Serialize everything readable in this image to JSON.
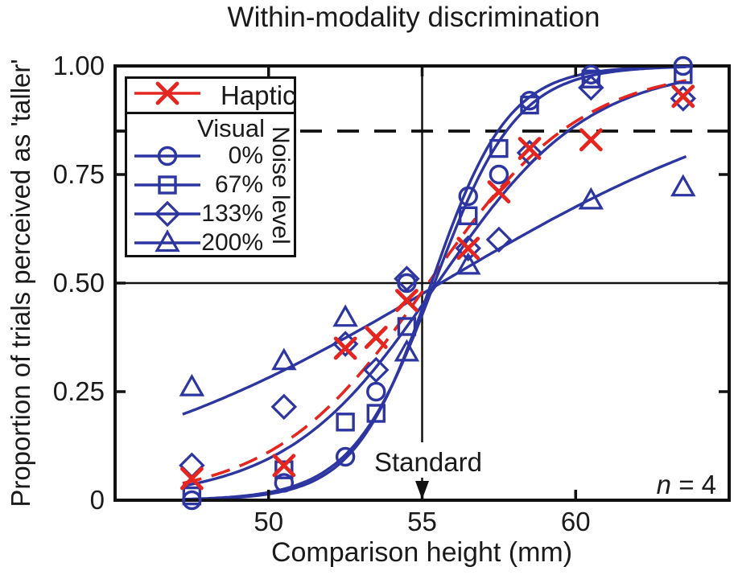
{
  "figure": {
    "title": "Within-modality discrimination",
    "xlabel": "Comparison height (mm)",
    "ylabel": "Proportion of trials perceived as 'taller'",
    "standard_label": "Standard",
    "n_symbol": "n",
    "n_rest": " = 4"
  },
  "legend": {
    "haptic_label": "Haptic",
    "visual_label": "Visual",
    "noise_label": "Noise level",
    "items": [
      {
        "label": "0%",
        "marker": "circle"
      },
      {
        "label": "67%",
        "marker": "square"
      },
      {
        "label": "133%",
        "marker": "diamond"
      },
      {
        "label": "200%",
        "marker": "triangle"
      }
    ]
  },
  "colors": {
    "visual_blue": "#2d35a0",
    "haptic_red": "#e52520",
    "axis_black": "#111111"
  },
  "chart_data": {
    "type": "scatter",
    "subtype": "psychometric functions with sigmoid fits",
    "title": "Within-modality discrimination",
    "xlabel": "Comparison height (mm)",
    "ylabel": "Proportion of trials perceived as 'taller'",
    "xlim": [
      45,
      65
    ],
    "ylim": [
      0,
      1
    ],
    "xticks": [
      {
        "value": 50,
        "label": "50"
      },
      {
        "value": 55,
        "label": "55"
      },
      {
        "value": 60,
        "label": "60"
      }
    ],
    "yticks": [
      {
        "value": 0,
        "label": "0"
      },
      {
        "value": 0.25,
        "label": "0.25"
      },
      {
        "value": 0.5,
        "label": "0.50"
      },
      {
        "value": 0.75,
        "label": "0.75"
      },
      {
        "value": 1,
        "label": "1.00"
      }
    ],
    "reference": {
      "dashed_hline": 0.85,
      "solid_hline": 0.5,
      "solid_vline": 55,
      "vline_label": "Standard",
      "note": "n = 4"
    },
    "series": [
      {
        "name": "Visual 200% noise",
        "marker": "triangle",
        "color": "#2d35a0",
        "line_style": "solid",
        "x": [
          47.5,
          50.5,
          52.5,
          54.5,
          56.5,
          60.5,
          63.5
        ],
        "y": [
          0.26,
          0.32,
          0.42,
          0.34,
          0.54,
          0.69,
          0.72
        ],
        "fit": {
          "type": "logistic",
          "mu": 55.6,
          "scale": 6.0
        }
      },
      {
        "name": "Visual 133% noise",
        "marker": "diamond",
        "color": "#2d35a0",
        "line_style": "solid",
        "x": [
          47.5,
          50.5,
          52.5,
          53.5,
          54.5,
          56.5,
          57.5,
          58.5,
          60.5,
          63.5
        ],
        "y": [
          0.08,
          0.215,
          0.36,
          0.3,
          0.51,
          0.58,
          0.6,
          0.8,
          0.95,
          0.925
        ],
        "fit": {
          "type": "logistic",
          "mu": 55.5,
          "scale": 2.45
        }
      },
      {
        "name": "Haptic",
        "marker": "x",
        "color": "#e52520",
        "line_style": "dashed",
        "x": [
          47.5,
          50.5,
          52.5,
          53.5,
          54.5,
          56.5,
          57.5,
          58.5,
          60.5,
          63.5
        ],
        "y": [
          0.05,
          0.08,
          0.35,
          0.375,
          0.46,
          0.58,
          0.71,
          0.81,
          0.83,
          0.93
        ],
        "fit": {
          "type": "logistic",
          "mu": 55.2,
          "scale": 2.5
        }
      },
      {
        "name": "Visual 67% noise",
        "marker": "square",
        "color": "#2d35a0",
        "line_style": "solid",
        "x": [
          47.5,
          50.5,
          52.5,
          53.5,
          54.5,
          56.5,
          57.5,
          58.5,
          60.5,
          63.5
        ],
        "y": [
          0.01,
          0.07,
          0.18,
          0.2,
          0.4,
          0.655,
          0.81,
          0.91,
          0.97,
          0.98
        ],
        "fit": {
          "type": "logistic",
          "mu": 55.4,
          "scale": 1.35
        }
      },
      {
        "name": "Visual 0% noise",
        "marker": "circle",
        "color": "#2d35a0",
        "line_style": "solid",
        "x": [
          47.5,
          50.5,
          52.5,
          53.5,
          54.5,
          56.5,
          57.5,
          58.5,
          60.5,
          63.5
        ],
        "y": [
          0.0,
          0.04,
          0.1,
          0.25,
          0.5,
          0.7,
          0.75,
          0.92,
          0.98,
          1.0
        ],
        "fit": {
          "type": "logistic",
          "mu": 55.3,
          "scale": 1.25
        }
      }
    ]
  }
}
